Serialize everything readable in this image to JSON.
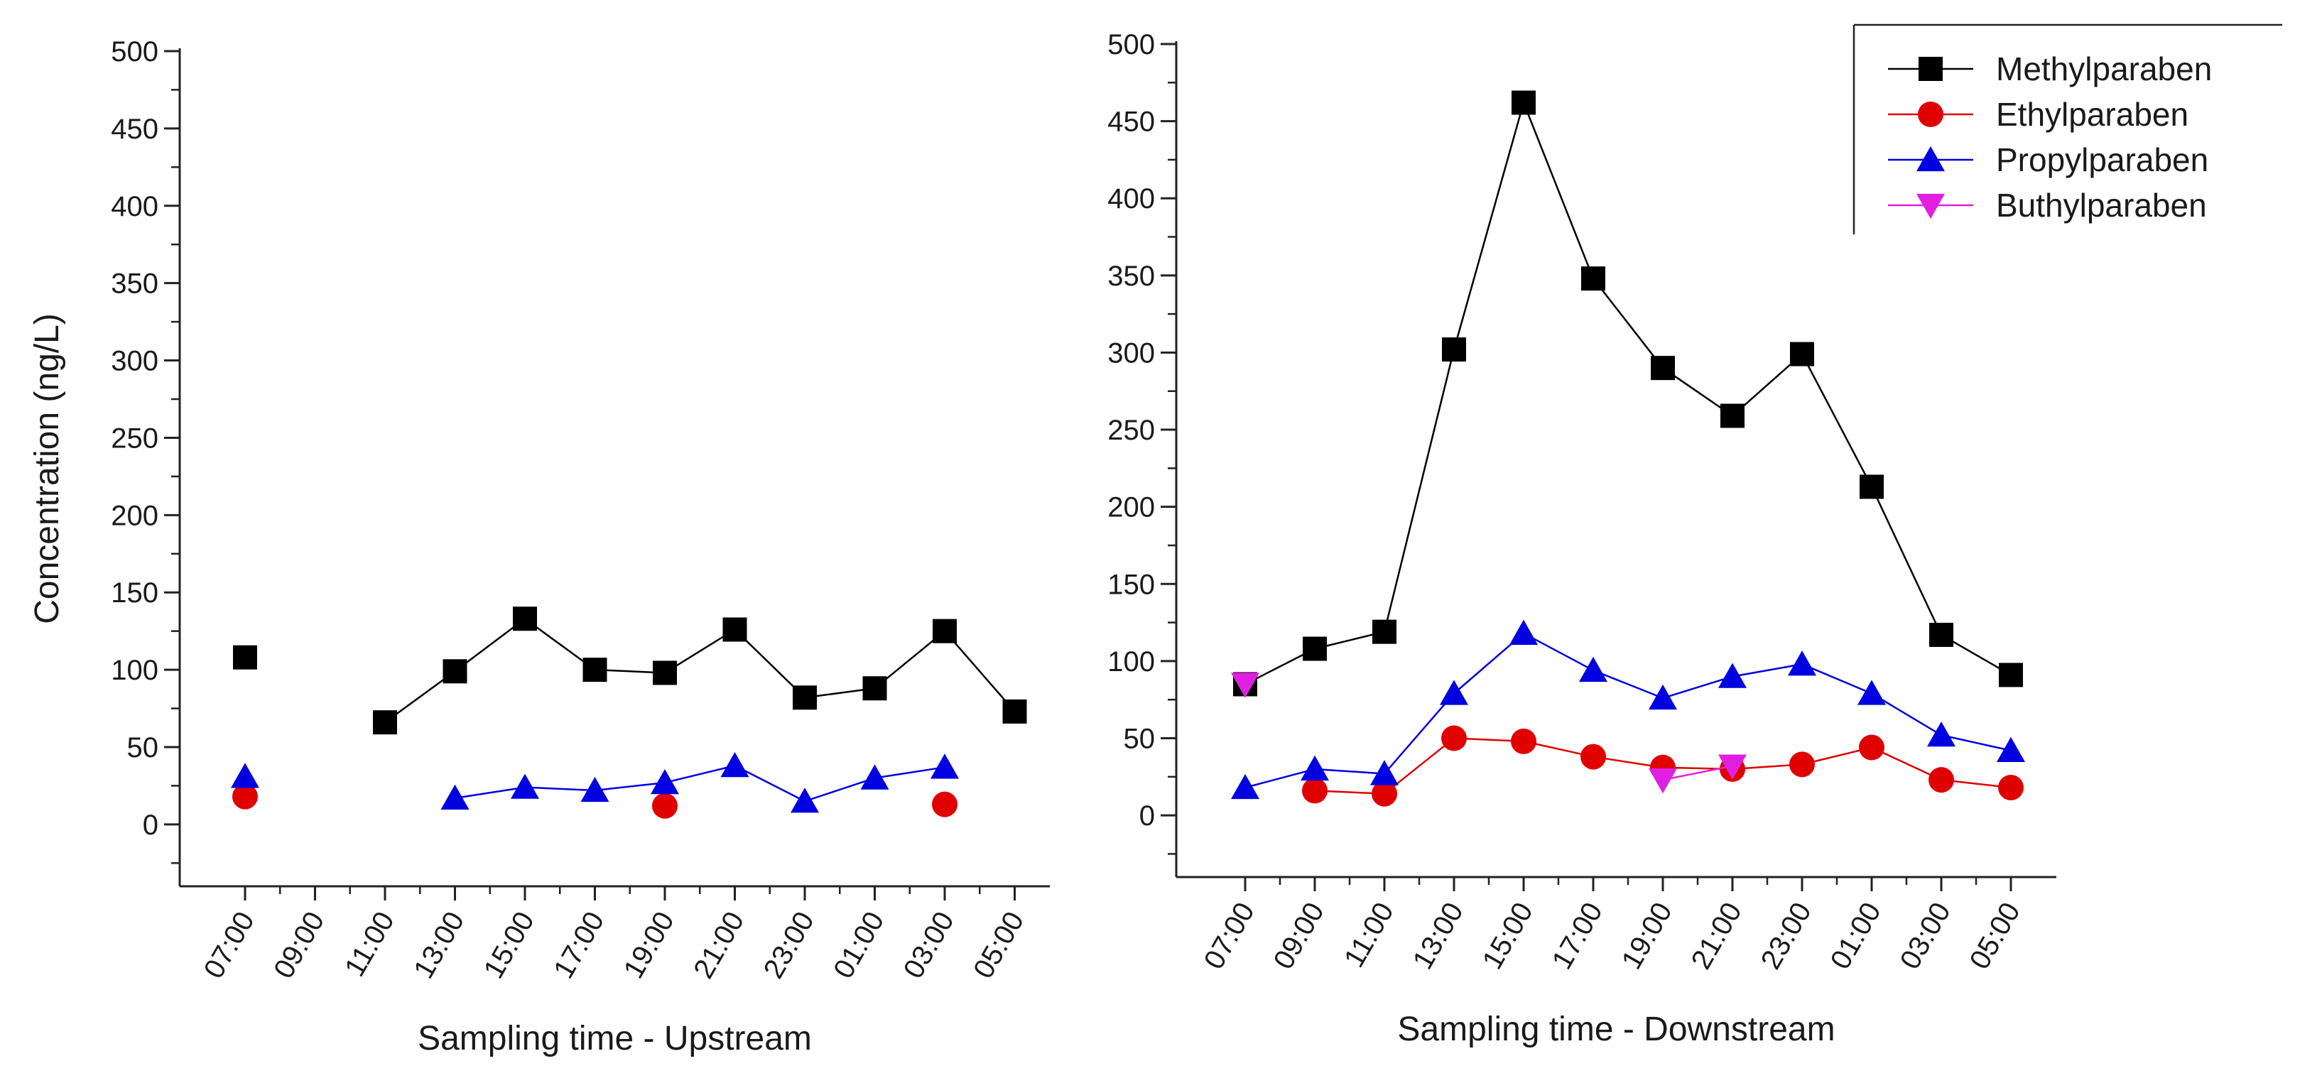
{
  "chart_data": [
    {
      "type": "line",
      "xlabel": "Sampling time - Upstream",
      "ylabel": "Concentration (ng/L)",
      "ylim": [
        -40,
        500
      ],
      "yticks": [
        0,
        50,
        100,
        150,
        200,
        250,
        300,
        350,
        400,
        450,
        500
      ],
      "categories": [
        "07:00",
        "09:00",
        "11:00",
        "13:00",
        "15:00",
        "17:00",
        "19:00",
        "21:00",
        "23:00",
        "01:00",
        "03:00",
        "05:00"
      ],
      "grid": false,
      "series": [
        {
          "name": "Methylparaben",
          "color": "#000000",
          "marker": "square",
          "values": [
            108,
            null,
            66,
            99,
            133,
            100,
            98,
            126,
            82,
            88,
            125,
            73
          ]
        },
        {
          "name": "Ethylparaben",
          "color": "#e00000",
          "marker": "circle",
          "values": [
            18,
            null,
            null,
            null,
            null,
            null,
            12,
            null,
            null,
            null,
            13,
            null
          ]
        },
        {
          "name": "Propylparaben",
          "color": "#0000e0",
          "marker": "triangle-up",
          "values": [
            31,
            null,
            null,
            17,
            24,
            22,
            27,
            38,
            15,
            30,
            37,
            null
          ]
        },
        {
          "name": "Buthylparaben",
          "color": "#e020e0",
          "marker": "triangle-down",
          "values": [
            null,
            null,
            null,
            null,
            null,
            null,
            null,
            null,
            null,
            null,
            null,
            null
          ]
        }
      ]
    },
    {
      "type": "line",
      "xlabel": "Sampling time - Downstream",
      "ylabel": "",
      "ylim": [
        -40,
        500
      ],
      "yticks": [
        0,
        50,
        100,
        150,
        200,
        250,
        300,
        350,
        400,
        450,
        500
      ],
      "categories": [
        "07:00",
        "09:00",
        "11:00",
        "13:00",
        "15:00",
        "17:00",
        "19:00",
        "21:00",
        "23:00",
        "01:00",
        "03:00",
        "05:00"
      ],
      "grid": false,
      "legend": "top-right",
      "series": [
        {
          "name": "Methylparaben",
          "color": "#000000",
          "marker": "square",
          "values": [
            85,
            108,
            119,
            302,
            462,
            348,
            290,
            259,
            299,
            213,
            117,
            91
          ]
        },
        {
          "name": "Ethylparaben",
          "color": "#e00000",
          "marker": "circle",
          "values": [
            null,
            16,
            14,
            50,
            48,
            38,
            31,
            30,
            33,
            44,
            23,
            18
          ]
        },
        {
          "name": "Propylparaben",
          "color": "#0000e0",
          "marker": "triangle-up",
          "values": [
            18,
            30,
            27,
            79,
            118,
            94,
            76,
            90,
            98,
            79,
            52,
            42
          ]
        },
        {
          "name": "Buthylparaben",
          "color": "#e020e0",
          "marker": "triangle-down",
          "values": [
            85,
            null,
            null,
            null,
            null,
            null,
            23,
            32,
            null,
            null,
            null,
            null
          ]
        }
      ]
    }
  ]
}
